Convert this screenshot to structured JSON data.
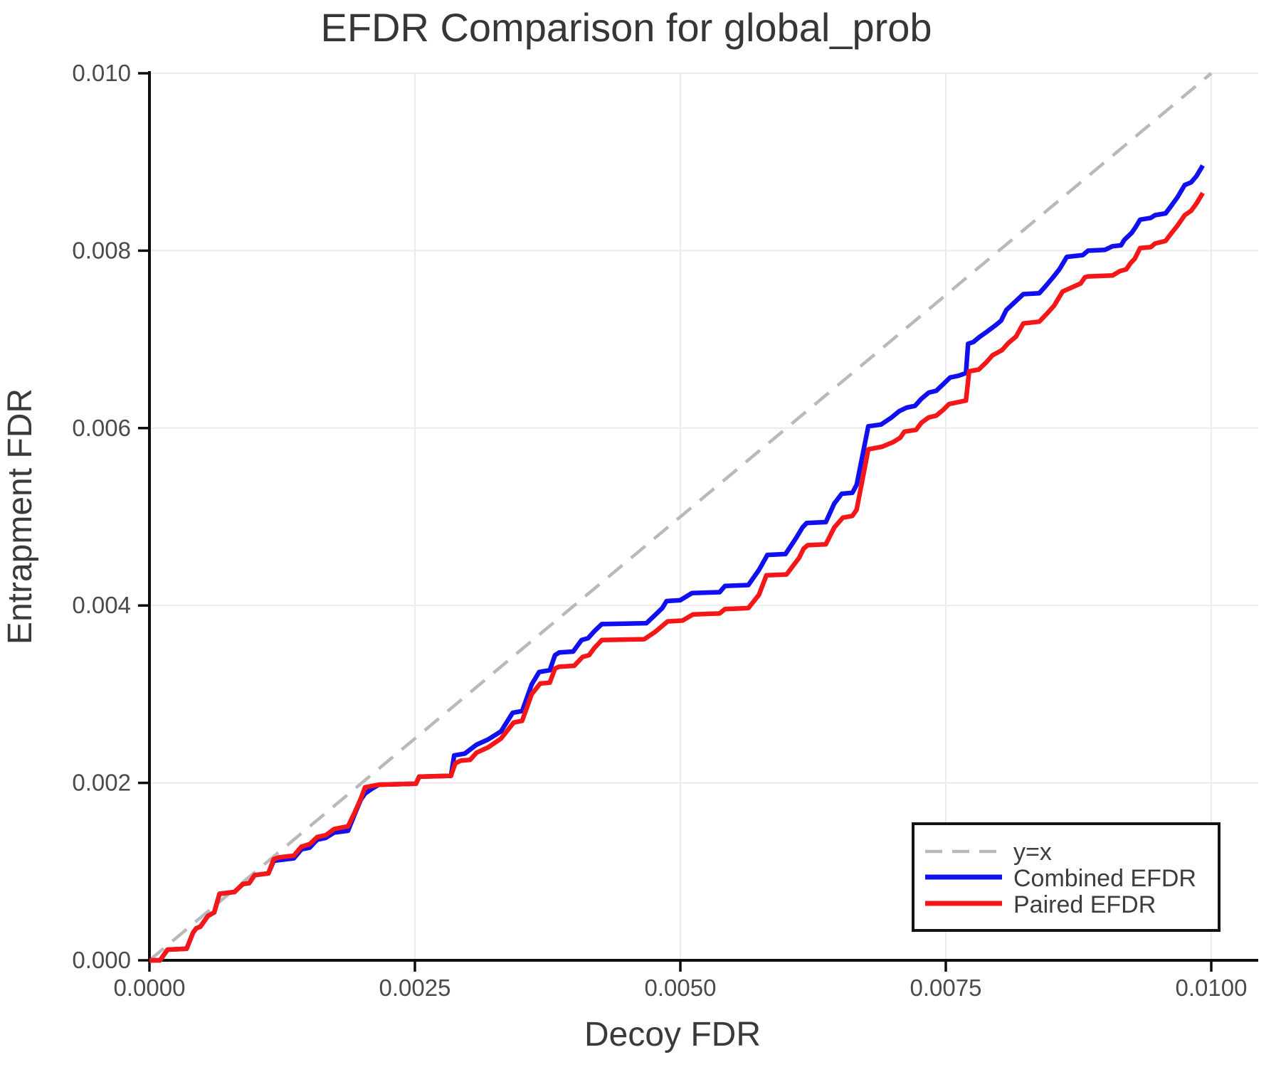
{
  "title": "EFDR Comparison for global_prob",
  "chart_data": {
    "type": "line",
    "title": "EFDR Comparison for global_prob",
    "xlabel": "Decoy FDR",
    "ylabel": "Entrapment FDR",
    "xlim": [
      0.0,
      0.01
    ],
    "ylim": [
      0.0,
      0.01
    ],
    "grid": true,
    "legend_position": "bottom-right",
    "x_ticks": [
      0.0,
      0.0025,
      0.005,
      0.0075,
      0.01
    ],
    "x_tick_labels": [
      "0.0000",
      "0.0025",
      "0.0050",
      "0.0075",
      "0.0100"
    ],
    "y_ticks": [
      0.0,
      0.002,
      0.004,
      0.006,
      0.008,
      0.01
    ],
    "y_tick_labels": [
      "0.000",
      "0.002",
      "0.004",
      "0.006",
      "0.008",
      "0.010"
    ],
    "series": [
      {
        "name": "y=x",
        "style": "dashed",
        "color": "#b9b9b9",
        "points": [
          [
            0,
            0
          ],
          [
            0.01,
            0.01
          ]
        ]
      },
      {
        "name": "Combined EFDR",
        "style": "solid",
        "color": "#0f0ff0",
        "points": [
          [
            0,
            0
          ],
          [
            0.0001,
            0
          ],
          [
            0.00017,
            0.00012
          ],
          [
            0.00035,
            0.00013
          ],
          [
            0.00041,
            0.00031
          ],
          [
            0.00044,
            0.00036
          ],
          [
            0.00048,
            0.00038
          ],
          [
            0.00055,
            0.0005
          ],
          [
            0.00061,
            0.00054
          ],
          [
            0.00066,
            0.00075
          ],
          [
            0.0008,
            0.00077
          ],
          [
            0.00088,
            0.00086
          ],
          [
            0.00094,
            0.00087
          ],
          [
            0.00099,
            0.00096
          ],
          [
            0.00112,
            0.00098
          ],
          [
            0.00117,
            0.00112
          ],
          [
            0.00122,
            0.00113
          ],
          [
            0.00136,
            0.00115
          ],
          [
            0.00143,
            0.00125
          ],
          [
            0.00151,
            0.00127
          ],
          [
            0.00158,
            0.00136
          ],
          [
            0.00166,
            0.00138
          ],
          [
            0.00174,
            0.00144
          ],
          [
            0.00187,
            0.00146
          ],
          [
            0.00193,
            0.00164
          ],
          [
            0.00199,
            0.00181
          ],
          [
            0.00203,
            0.00188
          ],
          [
            0.00209,
            0.00193
          ],
          [
            0.00216,
            0.00198
          ],
          [
            0.00251,
            0.00199
          ],
          [
            0.00254,
            0.00207
          ],
          [
            0.00284,
            0.00208
          ],
          [
            0.00287,
            0.00231
          ],
          [
            0.00297,
            0.00233
          ],
          [
            0.00308,
            0.00243
          ],
          [
            0.00319,
            0.00249
          ],
          [
            0.00331,
            0.00258
          ],
          [
            0.00342,
            0.00279
          ],
          [
            0.00351,
            0.00281
          ],
          [
            0.0036,
            0.00311
          ],
          [
            0.00367,
            0.00325
          ],
          [
            0.00377,
            0.00327
          ],
          [
            0.00382,
            0.00344
          ],
          [
            0.00386,
            0.00347
          ],
          [
            0.00399,
            0.00348
          ],
          [
            0.00407,
            0.00361
          ],
          [
            0.00413,
            0.00363
          ],
          [
            0.00419,
            0.00371
          ],
          [
            0.00426,
            0.00379
          ],
          [
            0.00468,
            0.0038
          ],
          [
            0.00476,
            0.00389
          ],
          [
            0.00483,
            0.00397
          ],
          [
            0.00487,
            0.00405
          ],
          [
            0.005,
            0.00406
          ],
          [
            0.00511,
            0.00414
          ],
          [
            0.00537,
            0.00415
          ],
          [
            0.00542,
            0.00422
          ],
          [
            0.00564,
            0.00423
          ],
          [
            0.00574,
            0.0044
          ],
          [
            0.00582,
            0.00457
          ],
          [
            0.00599,
            0.00458
          ],
          [
            0.00609,
            0.00476
          ],
          [
            0.00615,
            0.00488
          ],
          [
            0.00619,
            0.00493
          ],
          [
            0.00637,
            0.00494
          ],
          [
            0.00645,
            0.00515
          ],
          [
            0.00652,
            0.00526
          ],
          [
            0.00662,
            0.00527
          ],
          [
            0.00666,
            0.00536
          ],
          [
            0.00677,
            0.00602
          ],
          [
            0.00689,
            0.00604
          ],
          [
            0.00699,
            0.00612
          ],
          [
            0.00706,
            0.00619
          ],
          [
            0.00713,
            0.00623
          ],
          [
            0.00721,
            0.00625
          ],
          [
            0.00727,
            0.00633
          ],
          [
            0.00734,
            0.0064
          ],
          [
            0.00741,
            0.00642
          ],
          [
            0.00748,
            0.0065
          ],
          [
            0.00754,
            0.00657
          ],
          [
            0.00762,
            0.00659
          ],
          [
            0.00769,
            0.00662
          ],
          [
            0.00771,
            0.00695
          ],
          [
            0.00776,
            0.00697
          ],
          [
            0.00782,
            0.00703
          ],
          [
            0.00788,
            0.00708
          ],
          [
            0.00797,
            0.00716
          ],
          [
            0.00802,
            0.00721
          ],
          [
            0.00807,
            0.00733
          ],
          [
            0.00823,
            0.00751
          ],
          [
            0.00838,
            0.00752
          ],
          [
            0.00844,
            0.0076
          ],
          [
            0.00851,
            0.0077
          ],
          [
            0.00857,
            0.00779
          ],
          [
            0.00864,
            0.00793
          ],
          [
            0.00879,
            0.00795
          ],
          [
            0.00884,
            0.008
          ],
          [
            0.009,
            0.00801
          ],
          [
            0.00907,
            0.00805
          ],
          [
            0.00915,
            0.00806
          ],
          [
            0.00918,
            0.00812
          ],
          [
            0.00925,
            0.0082
          ],
          [
            0.00929,
            0.00827
          ],
          [
            0.00933,
            0.00835
          ],
          [
            0.00943,
            0.00837
          ],
          [
            0.00947,
            0.0084
          ],
          [
            0.00957,
            0.00842
          ],
          [
            0.00962,
            0.0085
          ],
          [
            0.00968,
            0.0086
          ],
          [
            0.00975,
            0.00874
          ],
          [
            0.00981,
            0.00877
          ],
          [
            0.00986,
            0.00884
          ],
          [
            0.00992,
            0.00896
          ]
        ]
      },
      {
        "name": "Paired EFDR",
        "style": "solid",
        "color": "#f51717",
        "points": [
          [
            0,
            0
          ],
          [
            0.0001,
            0
          ],
          [
            0.00017,
            0.00012
          ],
          [
            0.00035,
            0.00013
          ],
          [
            0.00041,
            0.00031
          ],
          [
            0.00044,
            0.00036
          ],
          [
            0.00048,
            0.00038
          ],
          [
            0.00055,
            0.0005
          ],
          [
            0.00061,
            0.00054
          ],
          [
            0.00066,
            0.00075
          ],
          [
            0.0008,
            0.00077
          ],
          [
            0.00088,
            0.00086
          ],
          [
            0.00094,
            0.00087
          ],
          [
            0.00099,
            0.00096
          ],
          [
            0.00112,
            0.00098
          ],
          [
            0.00117,
            0.00114
          ],
          [
            0.00122,
            0.00116
          ],
          [
            0.00136,
            0.00118
          ],
          [
            0.00143,
            0.00128
          ],
          [
            0.00151,
            0.00131
          ],
          [
            0.00158,
            0.00139
          ],
          [
            0.00166,
            0.00141
          ],
          [
            0.00174,
            0.00148
          ],
          [
            0.00187,
            0.00151
          ],
          [
            0.00193,
            0.00166
          ],
          [
            0.00199,
            0.00182
          ],
          [
            0.00203,
            0.00195
          ],
          [
            0.00216,
            0.00198
          ],
          [
            0.00251,
            0.00199
          ],
          [
            0.00254,
            0.00207
          ],
          [
            0.00284,
            0.00208
          ],
          [
            0.00288,
            0.00222
          ],
          [
            0.00293,
            0.00225
          ],
          [
            0.00302,
            0.00226
          ],
          [
            0.00308,
            0.00234
          ],
          [
            0.00319,
            0.0024
          ],
          [
            0.00331,
            0.0025
          ],
          [
            0.00343,
            0.00268
          ],
          [
            0.00351,
            0.0027
          ],
          [
            0.0036,
            0.003
          ],
          [
            0.00368,
            0.00312
          ],
          [
            0.00377,
            0.00313
          ],
          [
            0.00382,
            0.00329
          ],
          [
            0.00386,
            0.00331
          ],
          [
            0.004,
            0.00332
          ],
          [
            0.00408,
            0.00342
          ],
          [
            0.00414,
            0.00344
          ],
          [
            0.00419,
            0.00352
          ],
          [
            0.00426,
            0.00361
          ],
          [
            0.00466,
            0.00362
          ],
          [
            0.00476,
            0.0037
          ],
          [
            0.00484,
            0.00378
          ],
          [
            0.00488,
            0.00382
          ],
          [
            0.00502,
            0.00383
          ],
          [
            0.00512,
            0.0039
          ],
          [
            0.00537,
            0.00391
          ],
          [
            0.00542,
            0.00396
          ],
          [
            0.00564,
            0.00397
          ],
          [
            0.00574,
            0.00412
          ],
          [
            0.00581,
            0.00434
          ],
          [
            0.006,
            0.00435
          ],
          [
            0.00612,
            0.00454
          ],
          [
            0.00616,
            0.00464
          ],
          [
            0.0062,
            0.00468
          ],
          [
            0.00637,
            0.00469
          ],
          [
            0.00645,
            0.00488
          ],
          [
            0.00653,
            0.00499
          ],
          [
            0.00662,
            0.00501
          ],
          [
            0.00666,
            0.00508
          ],
          [
            0.00677,
            0.00576
          ],
          [
            0.0069,
            0.00579
          ],
          [
            0.007,
            0.00584
          ],
          [
            0.00707,
            0.00589
          ],
          [
            0.00711,
            0.00596
          ],
          [
            0.00722,
            0.00598
          ],
          [
            0.00727,
            0.00606
          ],
          [
            0.00734,
            0.00612
          ],
          [
            0.00741,
            0.00614
          ],
          [
            0.00748,
            0.00621
          ],
          [
            0.00753,
            0.00627
          ],
          [
            0.00761,
            0.00629
          ],
          [
            0.00769,
            0.00631
          ],
          [
            0.00772,
            0.00664
          ],
          [
            0.00781,
            0.00666
          ],
          [
            0.00788,
            0.00674
          ],
          [
            0.00794,
            0.00682
          ],
          [
            0.00803,
            0.00688
          ],
          [
            0.00809,
            0.00696
          ],
          [
            0.00816,
            0.00703
          ],
          [
            0.00823,
            0.00718
          ],
          [
            0.00838,
            0.0072
          ],
          [
            0.00846,
            0.0073
          ],
          [
            0.00852,
            0.00738
          ],
          [
            0.0086,
            0.00754
          ],
          [
            0.00877,
            0.00763
          ],
          [
            0.00881,
            0.0077
          ],
          [
            0.00884,
            0.00771
          ],
          [
            0.00907,
            0.00772
          ],
          [
            0.00914,
            0.00777
          ],
          [
            0.0092,
            0.00779
          ],
          [
            0.00924,
            0.00786
          ],
          [
            0.00928,
            0.00791
          ],
          [
            0.00933,
            0.00803
          ],
          [
            0.00943,
            0.00804
          ],
          [
            0.00947,
            0.00808
          ],
          [
            0.00957,
            0.00811
          ],
          [
            0.00962,
            0.00819
          ],
          [
            0.00968,
            0.00828
          ],
          [
            0.00975,
            0.0084
          ],
          [
            0.00981,
            0.00845
          ],
          [
            0.00986,
            0.00853
          ],
          [
            0.00992,
            0.00865
          ]
        ]
      }
    ]
  },
  "legend": {
    "items": [
      {
        "label": "y=x"
      },
      {
        "label": "Combined EFDR"
      },
      {
        "label": "Paired EFDR"
      }
    ]
  }
}
